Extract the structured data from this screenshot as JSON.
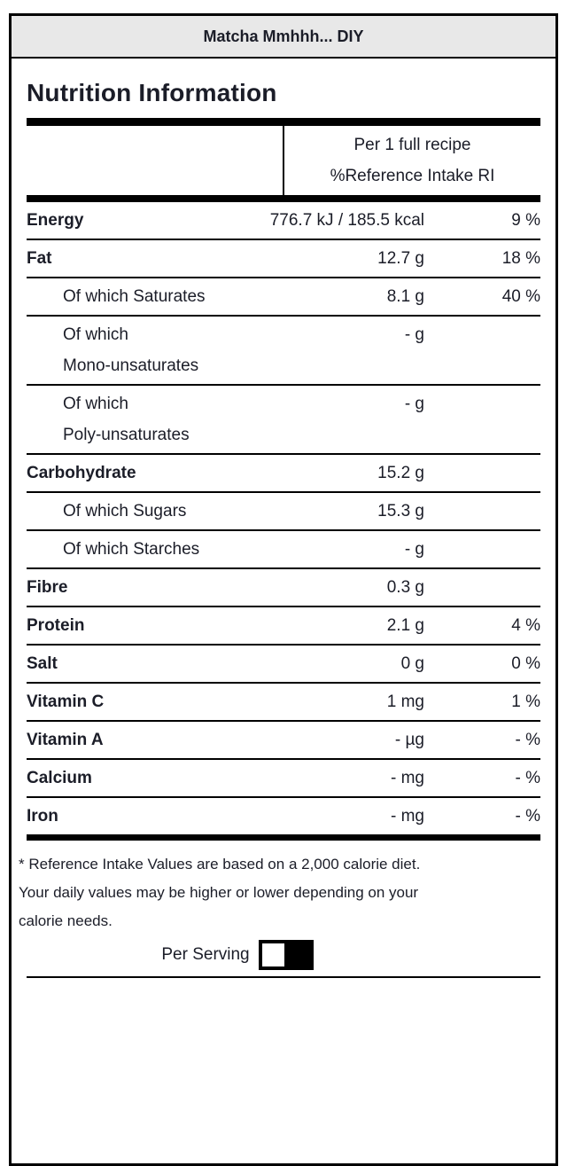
{
  "window": {
    "title": "Matcha Mmhhh... DIY"
  },
  "page_title": "Nutrition Information",
  "table": {
    "column_header": {
      "line1": "Per 1 full recipe",
      "line2": "%Reference Intake RI"
    },
    "rows": [
      {
        "label": "Energy",
        "style": "main",
        "amount": "776.7 kJ / 185.5 kcal",
        "percent": "9 %"
      },
      {
        "label": "Fat",
        "style": "main",
        "amount": "12.7 g",
        "percent": "18 %"
      },
      {
        "label": "Of which Saturates",
        "style": "sub",
        "amount": "8.1 g",
        "percent": "40 %"
      },
      {
        "label": "Of which\nMono-unsaturates",
        "style": "sub",
        "amount": "- g",
        "percent": ""
      },
      {
        "label": "Of which\nPoly-unsaturates",
        "style": "sub",
        "amount": "- g",
        "percent": ""
      },
      {
        "label": "Carbohydrate",
        "style": "main",
        "amount": "15.2 g",
        "percent": ""
      },
      {
        "label": "Of which Sugars",
        "style": "sub",
        "amount": "15.3 g",
        "percent": ""
      },
      {
        "label": "Of which Starches",
        "style": "sub",
        "amount": "- g",
        "percent": ""
      },
      {
        "label": "Fibre",
        "style": "main",
        "amount": "0.3 g",
        "percent": ""
      },
      {
        "label": "Protein",
        "style": "main",
        "amount": "2.1 g",
        "percent": "4 %"
      },
      {
        "label": "Salt",
        "style": "main",
        "amount": "0 g",
        "percent": "0 %"
      },
      {
        "label": "Vitamin C",
        "style": "main",
        "amount": "1 mg",
        "percent": "1 %"
      },
      {
        "label": "Vitamin A",
        "style": "main",
        "amount": "- µg",
        "percent": "- %"
      },
      {
        "label": "Calcium",
        "style": "main",
        "amount": "- mg",
        "percent": "- %"
      },
      {
        "label": "Iron",
        "style": "main",
        "amount": "- mg",
        "percent": "- %"
      }
    ]
  },
  "footnote_lines": [
    "* Reference Intake Values are based on a 2,000 calorie diet.",
    "Your daily values may be higher or lower depending on your",
    "calorie needs."
  ],
  "per_serving_toggle": {
    "label": "Per Serving",
    "state": "off"
  },
  "colors": {
    "text": "#1b1d28",
    "border": "#000000",
    "title_bar_bg": "#e8e8e8",
    "toggle_track": "#000000",
    "toggle_knob": "#ffffff"
  }
}
